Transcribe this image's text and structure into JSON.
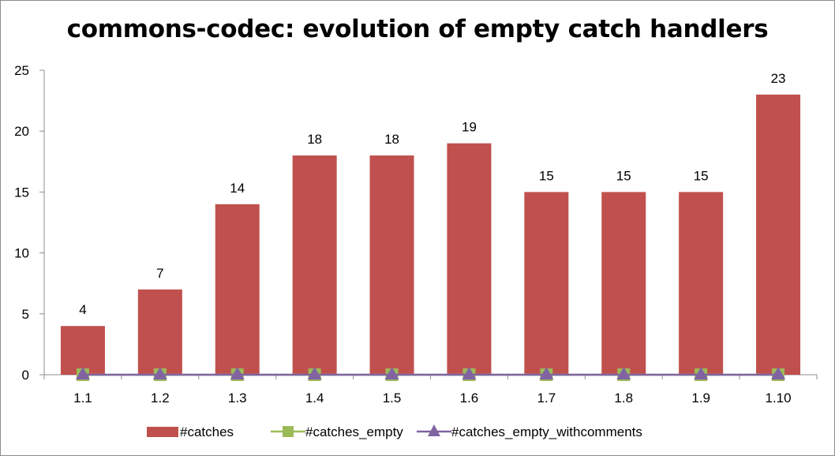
{
  "chart_data": {
    "type": "bar",
    "title": "commons-codec: evolution of empty catch handlers",
    "categories": [
      "1.1",
      "1.2",
      "1.3",
      "1.4",
      "1.5",
      "1.6",
      "1.7",
      "1.8",
      "1.9",
      "1.10"
    ],
    "series": [
      {
        "name": "#catches",
        "type": "bar",
        "values": [
          4,
          7,
          14,
          18,
          18,
          19,
          15,
          15,
          15,
          23
        ],
        "color": "#c0504d",
        "data_labels": true
      },
      {
        "name": "#catches_empty",
        "type": "line",
        "marker": "square",
        "values": [
          0,
          0,
          0,
          0,
          0,
          0,
          0,
          0,
          0,
          0
        ],
        "color": "#9bbb59"
      },
      {
        "name": "#catches_empty_withcomments",
        "type": "line",
        "marker": "triangle",
        "values": [
          0,
          0,
          0,
          0,
          0,
          0,
          0,
          0,
          0,
          0
        ],
        "color": "#8064a2"
      }
    ],
    "yticks": [
      "0",
      "5",
      "10",
      "15",
      "20",
      "25"
    ],
    "ylim": [
      0,
      25
    ],
    "grid": false,
    "legend": "bottom"
  }
}
